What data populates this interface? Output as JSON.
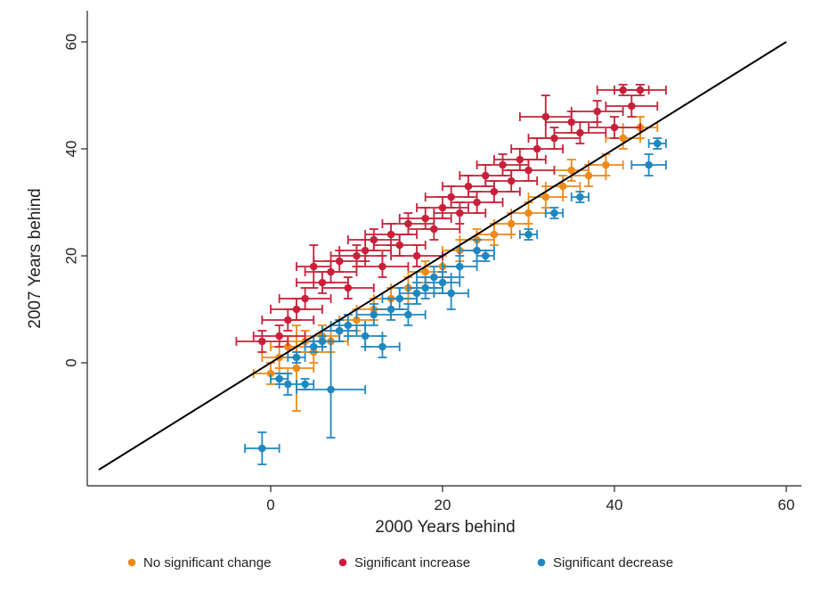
{
  "chart_data": {
    "type": "scatter",
    "title": "",
    "xlabel": "2000 Years behind",
    "ylabel": "2007 Years behind",
    "xlim": [
      -20,
      60
    ],
    "ylim": [
      -20,
      60
    ],
    "xticks": [
      "0",
      "20",
      "40",
      "60"
    ],
    "yticks": [
      "0",
      "20",
      "40",
      "60"
    ],
    "grid": false,
    "legend_position": "bottom",
    "reference_line": {
      "x": [
        -20,
        60
      ],
      "y": [
        -20,
        60
      ],
      "color": "#000000"
    },
    "series": [
      {
        "name": "No significant change",
        "color": "#ee8a1a",
        "points": [
          {
            "x": 0,
            "y": -2,
            "xerr": 2,
            "yerr": 2
          },
          {
            "x": 1,
            "y": 1,
            "xerr": 2,
            "yerr": 2
          },
          {
            "x": 2,
            "y": 3,
            "xerr": 2,
            "yerr": 2
          },
          {
            "x": 3,
            "y": -1,
            "xerr": 2,
            "yerr": 8
          },
          {
            "x": 4,
            "y": 4,
            "xerr": 2,
            "yerr": 2
          },
          {
            "x": 5,
            "y": 2,
            "xerr": 2,
            "yerr": 2
          },
          {
            "x": 6,
            "y": 5,
            "xerr": 2,
            "yerr": 2
          },
          {
            "x": 7,
            "y": 4,
            "xerr": 2,
            "yerr": 2
          },
          {
            "x": 8,
            "y": 6,
            "xerr": 2,
            "yerr": 2
          },
          {
            "x": 10,
            "y": 8,
            "xerr": 2,
            "yerr": 2
          },
          {
            "x": 12,
            "y": 10,
            "xerr": 2,
            "yerr": 2
          },
          {
            "x": 14,
            "y": 12,
            "xerr": 2,
            "yerr": 2
          },
          {
            "x": 16,
            "y": 14,
            "xerr": 2,
            "yerr": 2
          },
          {
            "x": 18,
            "y": 17,
            "xerr": 2,
            "yerr": 2
          },
          {
            "x": 20,
            "y": 18,
            "xerr": 2,
            "yerr": 2
          },
          {
            "x": 22,
            "y": 21,
            "xerr": 2,
            "yerr": 2
          },
          {
            "x": 24,
            "y": 23,
            "xerr": 2,
            "yerr": 2
          },
          {
            "x": 26,
            "y": 24,
            "xerr": 2,
            "yerr": 2
          },
          {
            "x": 28,
            "y": 26,
            "xerr": 2,
            "yerr": 2
          },
          {
            "x": 30,
            "y": 28,
            "xerr": 2,
            "yerr": 2
          },
          {
            "x": 32,
            "y": 31,
            "xerr": 2,
            "yerr": 2
          },
          {
            "x": 34,
            "y": 33,
            "xerr": 2,
            "yerr": 2
          },
          {
            "x": 35,
            "y": 36,
            "xerr": 2,
            "yerr": 2
          },
          {
            "x": 37,
            "y": 35,
            "xerr": 2,
            "yerr": 2
          },
          {
            "x": 39,
            "y": 37,
            "xerr": 2,
            "yerr": 2
          },
          {
            "x": 41,
            "y": 42,
            "xerr": 2,
            "yerr": 2
          },
          {
            "x": 43,
            "y": 44,
            "xerr": 2,
            "yerr": 2
          }
        ]
      },
      {
        "name": "Significant increase",
        "color": "#c8203a",
        "points": [
          {
            "x": -1,
            "y": 4,
            "xerr": 3,
            "yerr": 2
          },
          {
            "x": 1,
            "y": 5,
            "xerr": 3,
            "yerr": 2
          },
          {
            "x": 2,
            "y": 8,
            "xerr": 3,
            "yerr": 2
          },
          {
            "x": 3,
            "y": 10,
            "xerr": 3,
            "yerr": 2
          },
          {
            "x": 4,
            "y": 12,
            "xerr": 3,
            "yerr": 2
          },
          {
            "x": 5,
            "y": 18,
            "xerr": 2,
            "yerr": 4
          },
          {
            "x": 6,
            "y": 15,
            "xerr": 3,
            "yerr": 2
          },
          {
            "x": 7,
            "y": 17,
            "xerr": 3,
            "yerr": 2
          },
          {
            "x": 8,
            "y": 19,
            "xerr": 3,
            "yerr": 2
          },
          {
            "x": 9,
            "y": 14,
            "xerr": 3,
            "yerr": 2
          },
          {
            "x": 10,
            "y": 20,
            "xerr": 3,
            "yerr": 2
          },
          {
            "x": 11,
            "y": 21,
            "xerr": 3,
            "yerr": 2
          },
          {
            "x": 12,
            "y": 23,
            "xerr": 3,
            "yerr": 2
          },
          {
            "x": 13,
            "y": 18,
            "xerr": 3,
            "yerr": 2
          },
          {
            "x": 14,
            "y": 24,
            "xerr": 3,
            "yerr": 2
          },
          {
            "x": 15,
            "y": 22,
            "xerr": 3,
            "yerr": 2
          },
          {
            "x": 16,
            "y": 26,
            "xerr": 3,
            "yerr": 2
          },
          {
            "x": 17,
            "y": 20,
            "xerr": 3,
            "yerr": 2
          },
          {
            "x": 18,
            "y": 27,
            "xerr": 3,
            "yerr": 2
          },
          {
            "x": 19,
            "y": 25,
            "xerr": 3,
            "yerr": 2
          },
          {
            "x": 20,
            "y": 29,
            "xerr": 3,
            "yerr": 2
          },
          {
            "x": 21,
            "y": 31,
            "xerr": 3,
            "yerr": 2
          },
          {
            "x": 22,
            "y": 28,
            "xerr": 3,
            "yerr": 2
          },
          {
            "x": 23,
            "y": 33,
            "xerr": 3,
            "yerr": 2
          },
          {
            "x": 24,
            "y": 30,
            "xerr": 3,
            "yerr": 2
          },
          {
            "x": 25,
            "y": 35,
            "xerr": 3,
            "yerr": 2
          },
          {
            "x": 26,
            "y": 32,
            "xerr": 3,
            "yerr": 2
          },
          {
            "x": 27,
            "y": 37,
            "xerr": 3,
            "yerr": 2
          },
          {
            "x": 28,
            "y": 34,
            "xerr": 3,
            "yerr": 2
          },
          {
            "x": 29,
            "y": 38,
            "xerr": 3,
            "yerr": 2
          },
          {
            "x": 30,
            "y": 36,
            "xerr": 3,
            "yerr": 2
          },
          {
            "x": 31,
            "y": 40,
            "xerr": 3,
            "yerr": 2
          },
          {
            "x": 32,
            "y": 46,
            "xerr": 3,
            "yerr": 4
          },
          {
            "x": 33,
            "y": 42,
            "xerr": 3,
            "yerr": 2
          },
          {
            "x": 35,
            "y": 45,
            "xerr": 3,
            "yerr": 2
          },
          {
            "x": 36,
            "y": 43,
            "xerr": 3,
            "yerr": 2
          },
          {
            "x": 38,
            "y": 47,
            "xerr": 3,
            "yerr": 2
          },
          {
            "x": 40,
            "y": 44,
            "xerr": 3,
            "yerr": 2
          },
          {
            "x": 41,
            "y": 51,
            "xerr": 3,
            "yerr": 1
          },
          {
            "x": 42,
            "y": 48,
            "xerr": 3,
            "yerr": 2
          },
          {
            "x": 43,
            "y": 51,
            "xerr": 3,
            "yerr": 1
          }
        ]
      },
      {
        "name": "Significant decrease",
        "color": "#1f87c0",
        "points": [
          {
            "x": -1,
            "y": -16,
            "xerr": 2,
            "yerr": 3
          },
          {
            "x": 1,
            "y": -3,
            "xerr": 1,
            "yerr": 1
          },
          {
            "x": 2,
            "y": -4,
            "xerr": 1,
            "yerr": 2
          },
          {
            "x": 3,
            "y": 1,
            "xerr": 1,
            "yerr": 1
          },
          {
            "x": 4,
            "y": -4,
            "xerr": 1,
            "yerr": 1
          },
          {
            "x": 5,
            "y": 3,
            "xerr": 1,
            "yerr": 1
          },
          {
            "x": 6,
            "y": 4,
            "xerr": 1,
            "yerr": 1
          },
          {
            "x": 7,
            "y": -5,
            "xerr": 4,
            "yerr": 9
          },
          {
            "x": 8,
            "y": 6,
            "xerr": 2,
            "yerr": 2
          },
          {
            "x": 9,
            "y": 7,
            "xerr": 2,
            "yerr": 2
          },
          {
            "x": 11,
            "y": 5,
            "xerr": 2,
            "yerr": 2
          },
          {
            "x": 12,
            "y": 9,
            "xerr": 2,
            "yerr": 2
          },
          {
            "x": 13,
            "y": 3,
            "xerr": 2,
            "yerr": 2
          },
          {
            "x": 14,
            "y": 10,
            "xerr": 2,
            "yerr": 2
          },
          {
            "x": 15,
            "y": 12,
            "xerr": 2,
            "yerr": 2
          },
          {
            "x": 16,
            "y": 9,
            "xerr": 2,
            "yerr": 2
          },
          {
            "x": 17,
            "y": 13,
            "xerr": 2,
            "yerr": 2
          },
          {
            "x": 18,
            "y": 14,
            "xerr": 2,
            "yerr": 2
          },
          {
            "x": 19,
            "y": 16,
            "xerr": 2,
            "yerr": 2
          },
          {
            "x": 20,
            "y": 15,
            "xerr": 2,
            "yerr": 2
          },
          {
            "x": 21,
            "y": 13,
            "xerr": 2,
            "yerr": 3
          },
          {
            "x": 22,
            "y": 18,
            "xerr": 2,
            "yerr": 2
          },
          {
            "x": 24,
            "y": 21,
            "xerr": 2,
            "yerr": 2
          },
          {
            "x": 25,
            "y": 20,
            "xerr": 1,
            "yerr": 1
          },
          {
            "x": 30,
            "y": 24,
            "xerr": 1,
            "yerr": 1
          },
          {
            "x": 33,
            "y": 28,
            "xerr": 1,
            "yerr": 1
          },
          {
            "x": 36,
            "y": 31,
            "xerr": 1,
            "yerr": 1
          },
          {
            "x": 44,
            "y": 37,
            "xerr": 2,
            "yerr": 2
          },
          {
            "x": 45,
            "y": 41,
            "xerr": 1,
            "yerr": 1
          }
        ]
      }
    ]
  }
}
